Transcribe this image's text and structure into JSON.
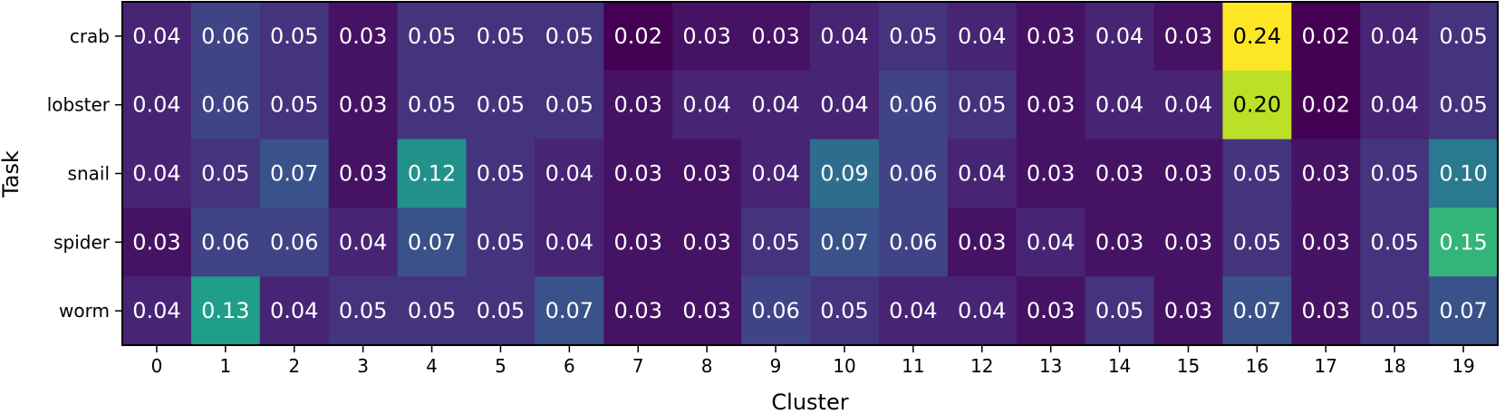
{
  "chart_data": {
    "type": "heatmap",
    "xlabel": "Cluster",
    "ylabel": "Task",
    "x_categories": [
      "0",
      "1",
      "2",
      "3",
      "4",
      "5",
      "6",
      "7",
      "8",
      "9",
      "10",
      "11",
      "12",
      "13",
      "14",
      "15",
      "16",
      "17",
      "18",
      "19"
    ],
    "y_categories": [
      "crab",
      "lobster",
      "snail",
      "spider",
      "worm"
    ],
    "values": [
      [
        0.04,
        0.06,
        0.05,
        0.03,
        0.05,
        0.05,
        0.05,
        0.02,
        0.03,
        0.03,
        0.04,
        0.05,
        0.04,
        0.03,
        0.04,
        0.03,
        0.24,
        0.02,
        0.04,
        0.05
      ],
      [
        0.04,
        0.06,
        0.05,
        0.03,
        0.05,
        0.05,
        0.05,
        0.03,
        0.04,
        0.04,
        0.04,
        0.06,
        0.05,
        0.03,
        0.04,
        0.04,
        0.2,
        0.02,
        0.04,
        0.05
      ],
      [
        0.04,
        0.05,
        0.07,
        0.03,
        0.12,
        0.05,
        0.04,
        0.03,
        0.03,
        0.04,
        0.09,
        0.06,
        0.04,
        0.03,
        0.03,
        0.03,
        0.05,
        0.03,
        0.05,
        0.1
      ],
      [
        0.03,
        0.06,
        0.06,
        0.04,
        0.07,
        0.05,
        0.04,
        0.03,
        0.03,
        0.05,
        0.07,
        0.06,
        0.03,
        0.04,
        0.03,
        0.03,
        0.05,
        0.03,
        0.05,
        0.15
      ],
      [
        0.04,
        0.13,
        0.04,
        0.05,
        0.05,
        0.05,
        0.07,
        0.03,
        0.03,
        0.06,
        0.05,
        0.04,
        0.04,
        0.03,
        0.05,
        0.03,
        0.07,
        0.03,
        0.05,
        0.07
      ]
    ],
    "colormap": "viridis",
    "value_range": [
      0.02,
      0.24
    ],
    "value_format": "2 decimals",
    "grid": false,
    "legend": "none"
  }
}
